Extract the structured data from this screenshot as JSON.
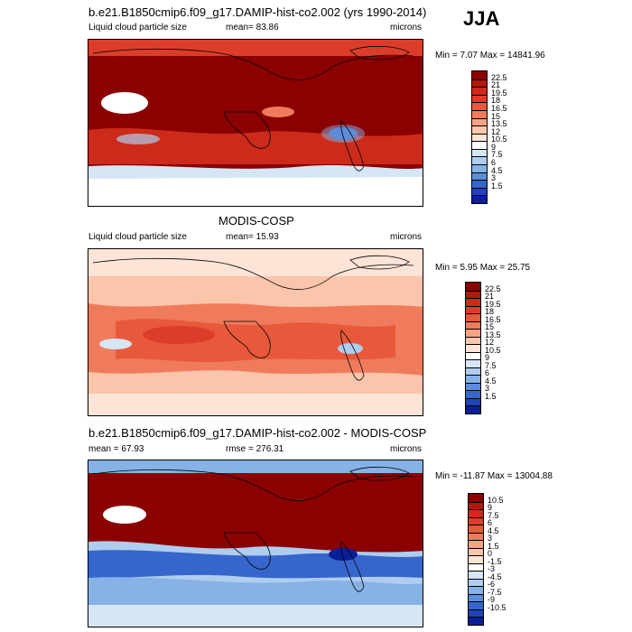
{
  "season": "JJA",
  "panels": [
    {
      "title": "b.e21.B1850cmip6.f09_g17.DAMIP-hist-co2.002 (yrs 1990-2014)",
      "left_label": "Liquid cloud particle size",
      "center_label": "mean=  83.86",
      "right_label": "microns",
      "minmax": "Min =    7.07  Max =  14841.96",
      "colorbar_labels": [
        "22.5",
        "21",
        "19.5",
        "18",
        "16.5",
        "15",
        "13.5",
        "12",
        "10.5",
        "9",
        "7.5",
        "6",
        "4.5",
        "3",
        "1.5"
      ],
      "colorbar_colors": [
        "#8b0000",
        "#b2180c",
        "#cc2a1a",
        "#dc3d2a",
        "#e8593c",
        "#f07b5c",
        "#f7a283",
        "#fbc5ab",
        "#fde4d6",
        "#ffffff",
        "#d6e6f5",
        "#afcdee",
        "#86b2e6",
        "#5b8fdb",
        "#3666cc",
        "#1f43b8",
        "#0a1e96"
      ]
    },
    {
      "title": "MODIS-COSP",
      "left_label": "Liquid cloud particle size",
      "center_label": "mean=  15.93",
      "right_label": "microns",
      "minmax": "Min =    5.95  Max =  25.75",
      "colorbar_labels": [
        "22.5",
        "21",
        "19.5",
        "18",
        "16.5",
        "15",
        "13.5",
        "12",
        "10.5",
        "9",
        "7.5",
        "6",
        "4.5",
        "3",
        "1.5"
      ],
      "colorbar_colors": [
        "#8b0000",
        "#b2180c",
        "#cc2a1a",
        "#dc3d2a",
        "#e8593c",
        "#f07b5c",
        "#f7a283",
        "#fbc5ab",
        "#fde4d6",
        "#ffffff",
        "#d6e6f5",
        "#afcdee",
        "#86b2e6",
        "#5b8fdb",
        "#3666cc",
        "#1f43b8",
        "#0a1e96"
      ]
    },
    {
      "title": "b.e21.B1850cmip6.f09_g17.DAMIP-hist-co2.002 - MODIS-COSP",
      "left_label": "mean =  67.93",
      "center_label": "rmse =  276.31",
      "right_label": "microns",
      "minmax": "Min = -11.87  Max =  13004.88",
      "colorbar_labels": [
        "10.5",
        "9",
        "7.5",
        "6",
        "4.5",
        "3",
        "1.5",
        "0",
        "-1.5",
        "-3",
        "-4.5",
        "-6",
        "-7.5",
        "-9",
        "-10.5"
      ],
      "colorbar_colors": [
        "#8b0000",
        "#b2180c",
        "#cc2a1a",
        "#dc3d2a",
        "#e8593c",
        "#f07b5c",
        "#f7a283",
        "#fbc5ab",
        "#fde4d6",
        "#ffffff",
        "#d6e6f5",
        "#afcdee",
        "#86b2e6",
        "#5b8fdb",
        "#3666cc",
        "#1f43b8",
        "#0a1e96"
      ]
    }
  ]
}
